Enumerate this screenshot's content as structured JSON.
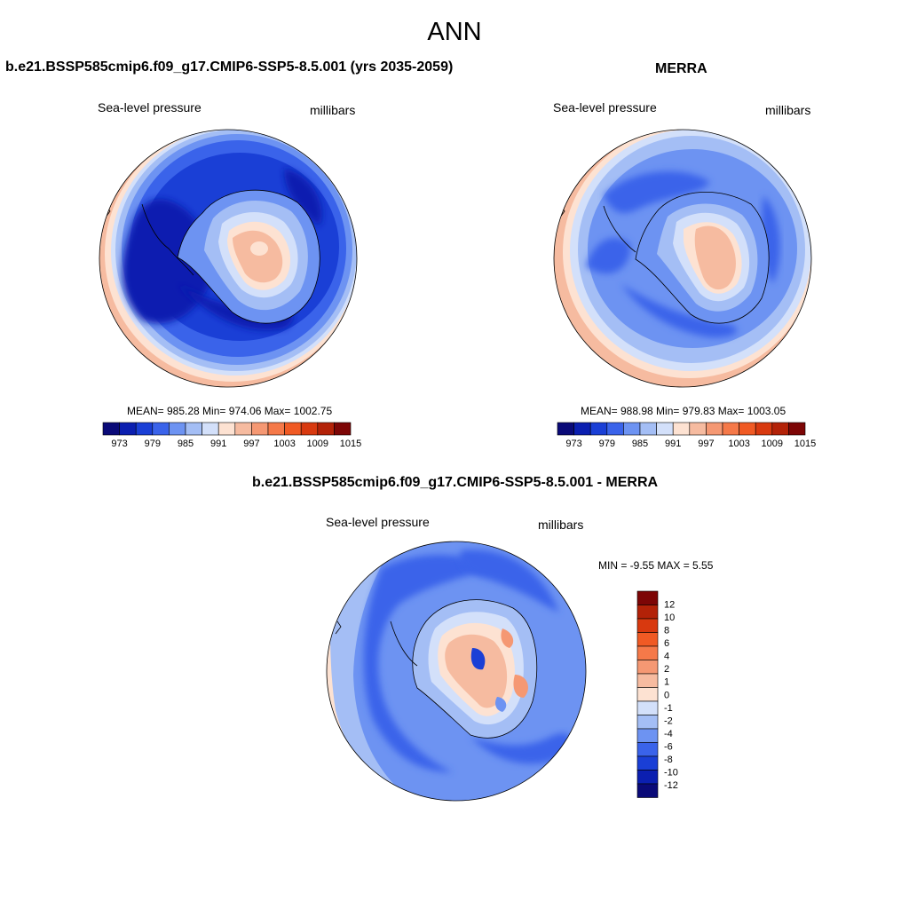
{
  "figure": {
    "title": "ANN"
  },
  "panels": [
    {
      "title": "b.e21.BSSP585cmip6.f09_g17.CMIP6-SSP5-8.5.001 (yrs 2035-2059)",
      "left_label": "Sea-level pressure",
      "right_label": "millibars",
      "stats": "MEAN= 985.28  Min= 974.06  Max= 1002.75",
      "colorbar_ticks": [
        "973",
        "979",
        "985",
        "991",
        "997",
        "1003",
        "1009",
        "1015"
      ]
    },
    {
      "title": "MERRA",
      "left_label": "Sea-level pressure",
      "right_label": "millibars",
      "stats": "MEAN= 988.98  Min= 979.83  Max= 1003.05",
      "colorbar_ticks": [
        "973",
        "979",
        "985",
        "991",
        "997",
        "1003",
        "1009",
        "1015"
      ]
    },
    {
      "title": "b.e21.BSSP585cmip6.f09_g17.CMIP6-SSP5-8.5.001 - MERRA",
      "left_label": "Sea-level pressure",
      "right_label": "millibars",
      "stats": "MIN =  -9.55 MAX =   5.55",
      "colorbar_ticks": [
        "12",
        "10",
        "8",
        "6",
        "4",
        "2",
        "1",
        "0",
        "-1",
        "-2",
        "-4",
        "-6",
        "-8",
        "-10",
        "-12"
      ]
    }
  ],
  "colors": {
    "colorbar_scale": [
      "#0a0a78",
      "#0b1fb0",
      "#1a3fd6",
      "#3a63ea",
      "#6d93f2",
      "#a4bef5",
      "#d3e0fa",
      "#fde2d2",
      "#f6bba0",
      "#f59873",
      "#f57949",
      "#f05a24",
      "#d8390f",
      "#b32208",
      "#7d0606"
    ],
    "diff_scale": [
      "#7d0606",
      "#b32208",
      "#d8390f",
      "#f05a24",
      "#f57949",
      "#f59873",
      "#f6bba0",
      "#fde2d2",
      "#d3e0fa",
      "#a4bef5",
      "#6d93f2",
      "#3a63ea",
      "#1a3fd6",
      "#0b1fb0",
      "#0a0a78"
    ]
  }
}
